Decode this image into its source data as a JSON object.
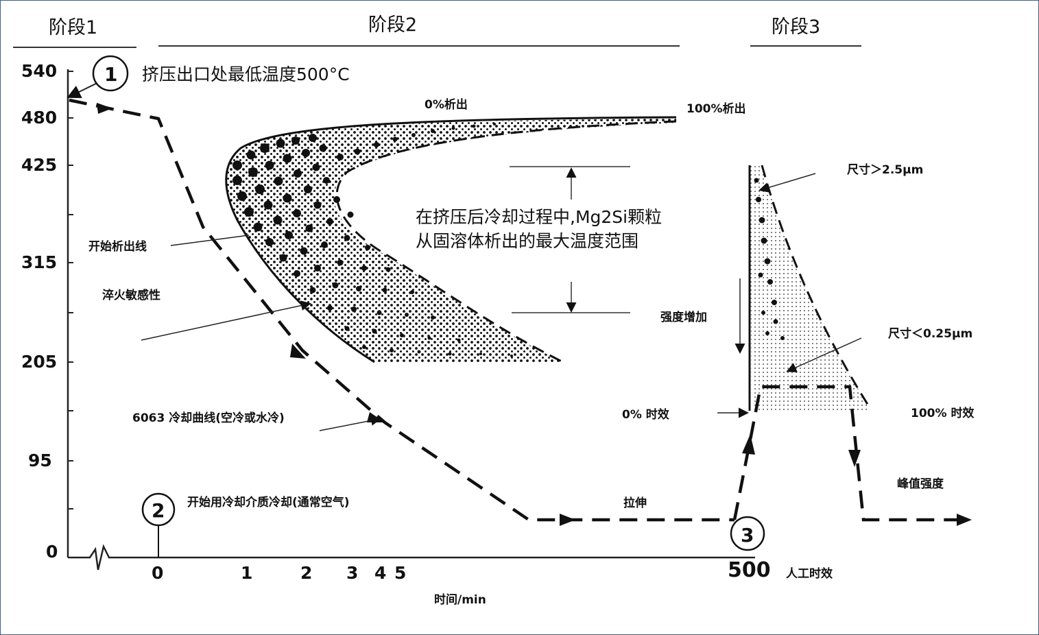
{
  "stages": {
    "stage1": "阶段1",
    "stage2": "阶段2",
    "stage3": "阶段3"
  },
  "axes": {
    "y_ticks": [
      "540",
      "480",
      "425",
      "315",
      "205",
      "95",
      "0"
    ],
    "x_ticks": [
      "0",
      "1",
      "2",
      "3",
      "4",
      "5",
      "500"
    ],
    "x_title": "时间/min",
    "x_extra": "人工时效"
  },
  "markers": {
    "m1": "1",
    "m2": "2",
    "m3": "3"
  },
  "annotations": {
    "extrusion_exit": "挤压出口处最低温度500°C",
    "pct0_precip": "0%析出",
    "pct100_precip": "100%析出",
    "start_line": "开始析出线",
    "quench_sensitivity": "淬火敏感性",
    "range_line1": "在挤压后冷却过程中,Mg2Si颗粒",
    "range_line2": "从固溶体析出的最大温度范围",
    "strength_increase": "强度增加",
    "cooling_curve": "6063 冷却曲线(空冷或水冷)",
    "start_cooling": "开始用冷却介质冷却(通常空气)",
    "stretch": "拉伸",
    "size_large": "尺寸＞2.5μm",
    "size_small": "尺寸＜0.25μm",
    "aging0": "0% 时效",
    "aging100": "100% 时效",
    "peak_strength": "峰值强度"
  }
}
